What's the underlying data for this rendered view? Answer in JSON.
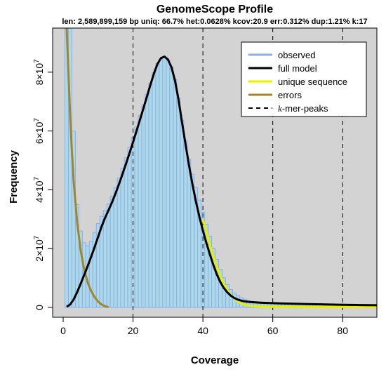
{
  "chart_data": {
    "type": "line",
    "title": "GenomeScope Profile",
    "subtitle": "len: 2,589,899,159 bp uniq: 66.7% het:0.0628% kcov:20.9 err:0.312% dup:1.21% k:17",
    "xlabel": "Coverage",
    "ylabel": "Frequency",
    "xlim": [
      0,
      90
    ],
    "ylim": [
      0,
      95000000
    ],
    "x_ticks": [
      0,
      20,
      40,
      60,
      80
    ],
    "x_tick_labels": [
      "0",
      "20",
      "40",
      "60",
      "80"
    ],
    "y_ticks": [
      0,
      20000000,
      40000000,
      60000000,
      80000000
    ],
    "y_tick_labels": [
      {
        "coef": "0",
        "exp": ""
      },
      {
        "coef": "2×10",
        "exp": "7"
      },
      {
        "coef": "4×10",
        "exp": "7"
      },
      {
        "coef": "6×10",
        "exp": "7"
      },
      {
        "coef": "8×10",
        "exp": "7"
      }
    ],
    "kmer_peaks": [
      20,
      40,
      60,
      80
    ],
    "legend": {
      "position": "top-right",
      "items": [
        {
          "label": "observed",
          "color": "#8aaef0",
          "style": "solid"
        },
        {
          "label": "full model",
          "color": "#000000",
          "style": "solid"
        },
        {
          "label": "unique sequence",
          "color": "#e8f000",
          "style": "solid"
        },
        {
          "label": "errors",
          "color": "#a3862a",
          "style": "solid"
        },
        {
          "label": "-mer-peaks",
          "label_prefix": "k",
          "color": "#000000",
          "style": "dashed"
        }
      ]
    },
    "series": [
      {
        "name": "observed",
        "kind": "histogram",
        "color": "#8aaef0",
        "x": [
          1,
          2,
          3,
          4,
          5,
          6,
          7,
          8,
          9,
          10,
          11,
          12,
          13,
          14,
          15,
          16,
          17,
          18,
          19,
          20,
          21,
          22,
          23,
          24,
          25,
          26,
          27,
          28,
          29,
          30,
          31,
          32,
          33,
          34,
          35,
          36,
          37,
          38,
          39,
          40,
          41,
          42,
          43,
          44,
          45,
          46,
          47,
          48,
          49,
          50,
          51,
          52,
          53,
          54,
          55,
          56,
          57,
          58,
          59,
          60,
          61,
          62,
          63,
          64,
          65,
          66,
          67,
          68,
          69,
          70,
          71,
          72,
          73,
          74,
          75,
          76,
          77,
          78,
          79,
          80,
          81,
          82,
          83,
          84,
          85,
          86,
          87,
          88,
          89,
          90
        ],
        "values": [
          95000000,
          95000000,
          60000000,
          35000000,
          26000000,
          22000000,
          21000000,
          22500000,
          25500000,
          28500000,
          31000000,
          33000000,
          35300000,
          37900000,
          40900000,
          44100000,
          47400000,
          50900000,
          54300000,
          57900000,
          61500000,
          65200000,
          68900000,
          72500000,
          76300000,
          79900000,
          82900000,
          84500000,
          85000000,
          84200000,
          81800000,
          77500000,
          71200000,
          63700000,
          56800000,
          50500000,
          45300000,
          40800000,
          36500000,
          32400000,
          28300000,
          24200000,
          20100000,
          16300000,
          13000000,
          10100000,
          7800000,
          6100000,
          4900000,
          4000000,
          3300000,
          2800000,
          2400000,
          2150000,
          2000000,
          1900000,
          1800000,
          1700000,
          1630000,
          1560000,
          1500000,
          1440000,
          1390000,
          1340000,
          1290000,
          1250000,
          1210000,
          1170000,
          1130000,
          1100000,
          1070000,
          1040000,
          1010000,
          980000,
          950000,
          920000,
          900000,
          880000,
          860000,
          840000,
          820000,
          800000,
          780000,
          760000,
          740000,
          720000,
          700000,
          680000,
          660000,
          640000
        ]
      },
      {
        "name": "full model",
        "color": "#000000",
        "x": [
          1,
          2,
          3,
          4,
          5,
          6,
          7,
          8,
          9,
          10,
          11,
          12,
          13,
          14,
          15,
          16,
          17,
          18,
          19,
          20,
          21,
          22,
          23,
          24,
          25,
          26,
          27,
          28,
          29,
          30,
          31,
          32,
          33,
          34,
          35,
          36,
          37,
          38,
          39,
          40,
          41,
          42,
          43,
          44,
          45,
          46,
          47,
          48,
          49,
          50,
          51,
          52,
          53,
          54,
          55,
          56,
          57,
          58,
          59,
          60,
          62,
          65,
          70,
          75,
          80,
          85,
          90
        ],
        "values": [
          200000,
          1000000,
          2700000,
          5200000,
          8000000,
          11000000,
          14000000,
          17200000,
          20500000,
          24000000,
          27500000,
          30500000,
          33100000,
          35800000,
          38800000,
          42000000,
          45400000,
          48900000,
          52500000,
          56200000,
          60000000,
          63900000,
          67800000,
          71800000,
          75800000,
          79600000,
          82800000,
          84800000,
          85300000,
          84300000,
          81700000,
          77200000,
          70800000,
          63100000,
          55700000,
          48500000,
          41900000,
          36000000,
          30800000,
          26100000,
          21900000,
          18000000,
          14400000,
          11200000,
          8600000,
          6600000,
          5100000,
          4000000,
          3200000,
          2650000,
          2300000,
          2050000,
          1900000,
          1800000,
          1720000,
          1650000,
          1590000,
          1540000,
          1490000,
          1450000,
          1370000,
          1280000,
          1130000,
          1000000,
          900000,
          810000,
          730000
        ]
      },
      {
        "name": "unique sequence",
        "color": "#e8f000",
        "x": [
          40,
          41,
          42,
          43,
          44,
          45,
          46,
          47,
          48,
          49,
          50,
          51,
          52,
          53,
          54,
          55,
          56,
          57,
          58,
          59,
          60,
          62,
          65,
          70,
          75,
          80,
          85,
          90
        ],
        "values": [
          30000000,
          25500000,
          21200000,
          17300000,
          13800000,
          10700000,
          8000000,
          5900000,
          4200000,
          2900000,
          2000000,
          1350000,
          900000,
          620000,
          450000,
          350000,
          290000,
          250000,
          230000,
          220000,
          210000,
          200000,
          195000,
          190000,
          185000,
          180000,
          175000,
          170000
        ]
      },
      {
        "name": "errors",
        "color": "#a3862a",
        "x": [
          1,
          1.5,
          2,
          2.5,
          3,
          4,
          5,
          6,
          7,
          8,
          9,
          10,
          11,
          12,
          13
        ],
        "values": [
          95000000,
          80000000,
          65000000,
          53000000,
          43000000,
          29000000,
          19500000,
          13000000,
          8600000,
          5600000,
          3500000,
          2000000,
          1000000,
          400000,
          100000
        ]
      }
    ]
  }
}
